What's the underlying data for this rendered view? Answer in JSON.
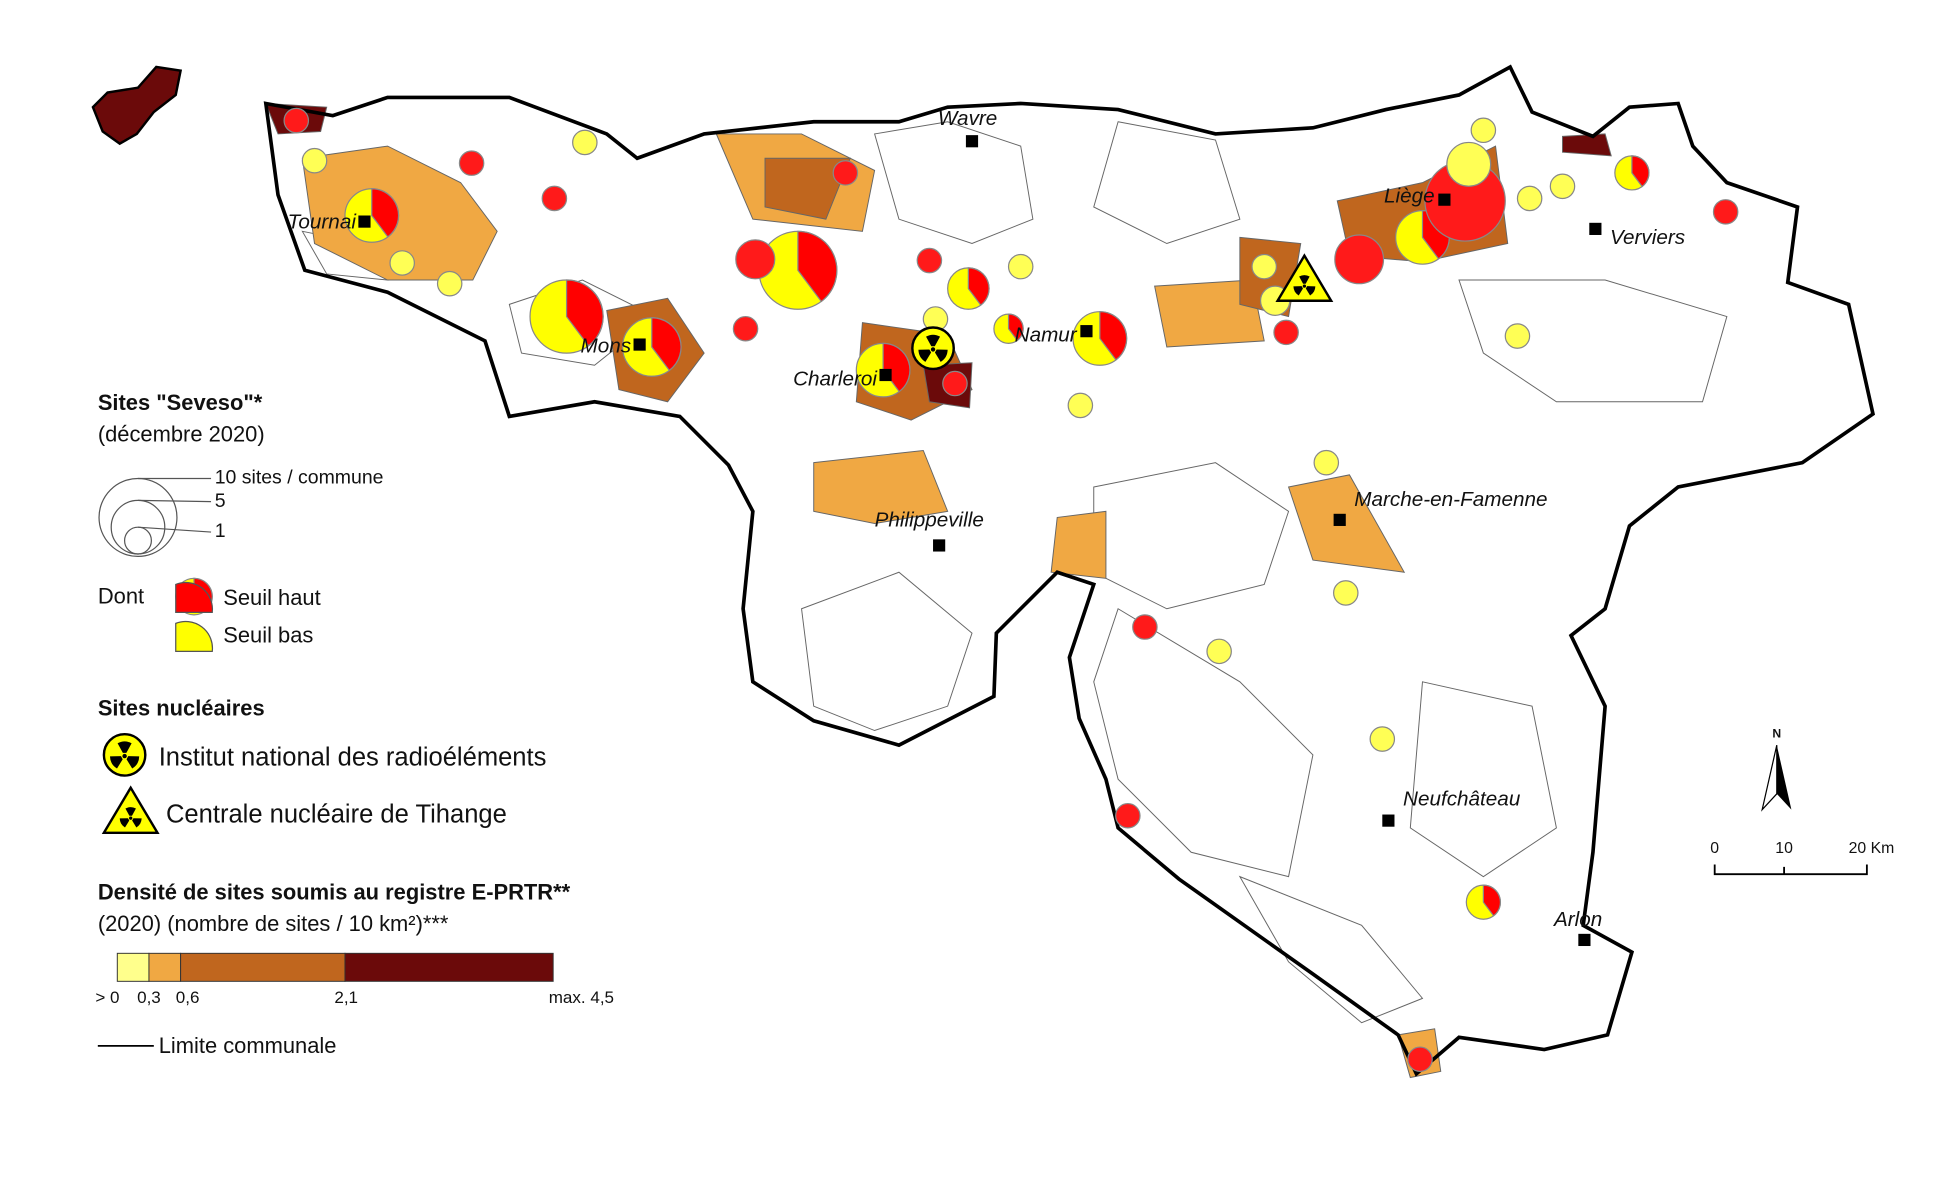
{
  "cities": [
    {
      "label": "Wavre"
    },
    {
      "label": "Tournai"
    },
    {
      "label": "Liège"
    },
    {
      "label": "Verviers"
    },
    {
      "label": "Mons"
    },
    {
      "label": "Charleroi"
    },
    {
      "label": "Namur"
    },
    {
      "label": "Philippeville"
    },
    {
      "label": "Marche-en-Famenne"
    },
    {
      "label": "Neufchâteau"
    },
    {
      "label": "Arlon"
    }
  ],
  "legend": {
    "seveso": {
      "title": "Sites \"Seveso\"*",
      "subtitle": "(décembre 2020)",
      "sizes": [
        "10 sites / commune",
        "5",
        "1"
      ],
      "prefix": "Dont",
      "classes": [
        "Seuil haut",
        "Seuil bas"
      ]
    },
    "nuclear": {
      "title": "Sites nucléaires",
      "items": [
        "Institut national des radioéléments",
        "Centrale nucléaire de Tihange"
      ]
    },
    "density": {
      "title": "Densité de sites soumis au registre E-PRTR**",
      "subtitle": "(2020) (nombre de sites / 10 km²)***",
      "breaks": [
        "> 0",
        "0,3",
        "0,6",
        "2,1",
        "max. 4,5"
      ]
    },
    "boundary": "Limite communale"
  },
  "scale": {
    "north": "N",
    "labels": [
      "0",
      "10",
      "20 Km"
    ]
  }
}
